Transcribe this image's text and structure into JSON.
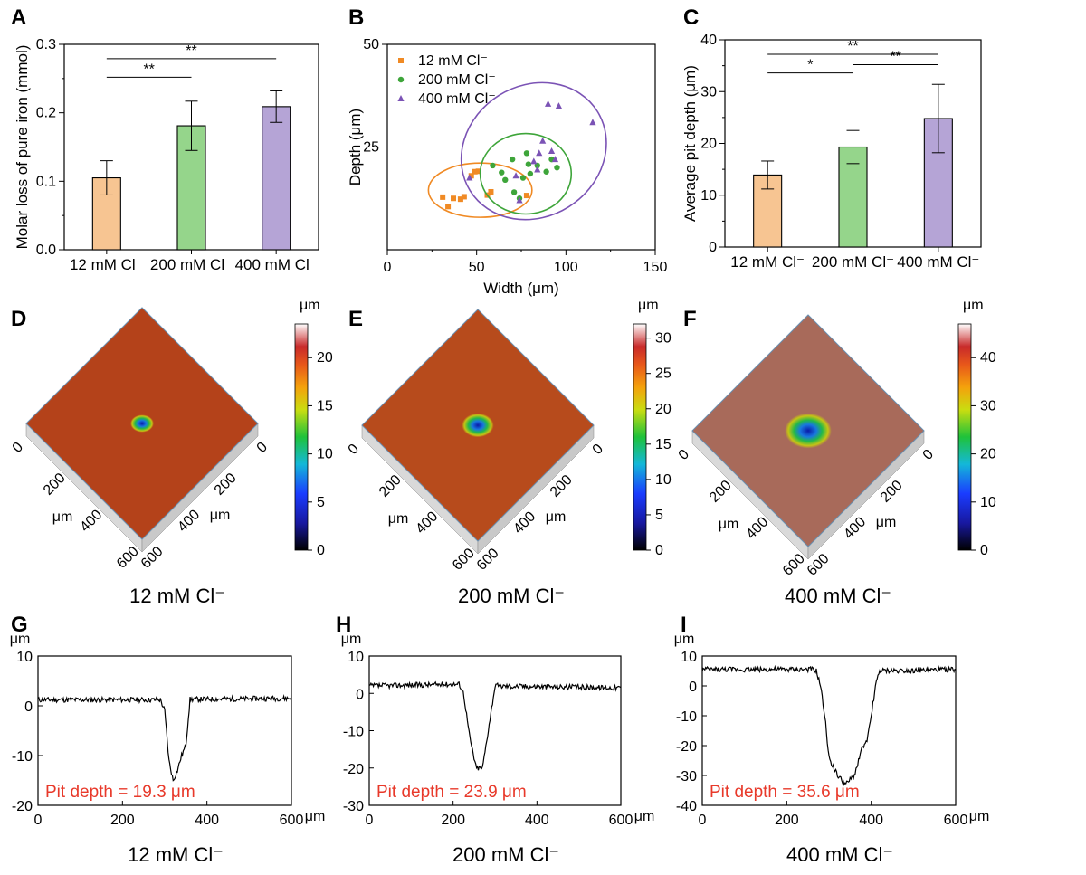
{
  "chart_data": [
    {
      "panel": "A",
      "type": "bar",
      "ylabel": "Molar loss of pure iron (mmol)",
      "ylim": [
        0,
        0.3
      ],
      "yticks": [
        "0.0",
        "0.1",
        "0.2",
        "0.3"
      ],
      "categories": [
        "12 mM Cl⁻",
        "200 mM Cl⁻",
        "400 mM Cl⁻"
      ],
      "values": [
        0.105,
        0.181,
        0.209
      ],
      "errors": [
        0.025,
        0.036,
        0.023
      ],
      "colors": [
        "#f7c592",
        "#95d58b",
        "#b5a4d6"
      ],
      "significance": [
        {
          "from": 0,
          "to": 1,
          "label": "**"
        },
        {
          "from": 0,
          "to": 2,
          "label": "**"
        }
      ]
    },
    {
      "panel": "B",
      "type": "scatter",
      "xlabel": "Width (μm)",
      "ylabel": "Depth (μm)",
      "xlim": [
        0,
        150
      ],
      "ylim": [
        0,
        50
      ],
      "xticks": [
        "0",
        "50",
        "100",
        "150"
      ],
      "yticks": [
        "25",
        "50"
      ],
      "legend_position": "top-left",
      "series": [
        {
          "name": "12 mM Cl⁻",
          "marker": "square",
          "color": "#f08a24",
          "points": [
            [
              31,
              12.8
            ],
            [
              34,
              10.5
            ],
            [
              37,
              12.5
            ],
            [
              41,
              12.3
            ],
            [
              43,
              12.9
            ],
            [
              47,
              18.0
            ],
            [
              49,
              19.0
            ],
            [
              51,
              19.1
            ],
            [
              56,
              13.3
            ],
            [
              58,
              14.1
            ],
            [
              78,
              13.2
            ]
          ],
          "ellipse": {
            "cx": 52,
            "cy": 14.5,
            "rx": 29,
            "ry": 6.6,
            "angle": 0
          }
        },
        {
          "name": "200 mM Cl⁻",
          "marker": "circle",
          "color": "#3ea53a",
          "points": [
            [
              59,
              20.5
            ],
            [
              64,
              18.8
            ],
            [
              66,
              17.0
            ],
            [
              70,
              22.0
            ],
            [
              71,
              14.0
            ],
            [
              74,
              12.5
            ],
            [
              76,
              17.5
            ],
            [
              78,
              23.5
            ],
            [
              79,
              20.8
            ],
            [
              80,
              18.5
            ],
            [
              84,
              20.5
            ],
            [
              89,
              19.0
            ],
            [
              92,
              22.0
            ],
            [
              95,
              20.0
            ]
          ],
          "ellipse": {
            "cx": 77.5,
            "cy": 18.5,
            "rx": 25.5,
            "ry": 9.8,
            "angle": 0
          }
        },
        {
          "name": "400 mM Cl⁻",
          "marker": "triangle",
          "color": "#7b53b5",
          "points": [
            [
              46,
              17.5
            ],
            [
              72,
              18.0
            ],
            [
              74,
              12.0
            ],
            [
              82,
              21.5
            ],
            [
              84,
              19.5
            ],
            [
              85,
              23.5
            ],
            [
              87,
              26.5
            ],
            [
              90,
              35.5
            ],
            [
              92,
              24.0
            ],
            [
              94,
              22.0
            ],
            [
              96,
              35.0
            ],
            [
              115,
              31.0
            ]
          ],
          "ellipse": {
            "cx": 82,
            "cy": 24,
            "rx": 42,
            "ry": 16,
            "angle": -32
          }
        }
      ]
    },
    {
      "panel": "C",
      "type": "bar",
      "ylabel": "Average pit depth (μm)",
      "ylim": [
        0,
        40
      ],
      "yticks": [
        "0",
        "10",
        "20",
        "30",
        "40"
      ],
      "categories": [
        "12 mM Cl⁻",
        "200 mM Cl⁻",
        "400 mM Cl⁻"
      ],
      "values": [
        13.9,
        19.3,
        24.8
      ],
      "errors": [
        2.7,
        3.2,
        6.6
      ],
      "colors": [
        "#f7c592",
        "#95d58b",
        "#b5a4d6"
      ],
      "significance": [
        {
          "from": 0,
          "to": 1,
          "label": "*"
        },
        {
          "from": 1,
          "to": 2,
          "label": "**"
        },
        {
          "from": 0,
          "to": 2,
          "label": "**"
        }
      ]
    },
    {
      "panel": "D",
      "type": "heatmap",
      "caption": "12 mM Cl⁻",
      "colorbar_unit": "μm",
      "colorbar_ticks": [
        "0",
        "5",
        "10",
        "15",
        "20"
      ],
      "colorbar_max": 23.5,
      "axis_ticks": [
        "0",
        "200",
        "400",
        "600"
      ],
      "axis_unit": "μm",
      "surface_tint": "#b4421a"
    },
    {
      "panel": "E",
      "type": "heatmap",
      "caption": "200 mM Cl⁻",
      "colorbar_unit": "μm",
      "colorbar_ticks": [
        "0",
        "5",
        "10",
        "15",
        "20",
        "25",
        "30"
      ],
      "colorbar_max": 32,
      "axis_ticks": [
        "0",
        "200",
        "400",
        "600"
      ],
      "axis_unit": "μm",
      "surface_tint": "#b74b1c"
    },
    {
      "panel": "F",
      "type": "heatmap",
      "caption": "400 mM Cl⁻",
      "colorbar_unit": "μm",
      "colorbar_ticks": [
        "0",
        "10",
        "20",
        "30",
        "40"
      ],
      "colorbar_max": 47,
      "axis_ticks": [
        "0",
        "200",
        "400",
        "600"
      ],
      "axis_unit": "μm",
      "surface_tint": "#a86a5a"
    },
    {
      "panel": "G",
      "type": "line",
      "caption": "12 mM Cl⁻",
      "xunit": "μm",
      "yunit": "μm",
      "xlim": [
        0,
        600
      ],
      "ylim": [
        -20,
        10
      ],
      "xticks": [
        "0",
        "200",
        "400",
        "600"
      ],
      "yticks": [
        "-20",
        "-10",
        "0",
        "10"
      ],
      "annotation": "Pit depth = 19.3 μm",
      "x": [
        0,
        290,
        300,
        310,
        320,
        330,
        340,
        350,
        360,
        600
      ],
      "y": [
        1.2,
        1.2,
        -1,
        -11,
        -15,
        -13,
        -10,
        -8,
        1.3,
        1.5
      ]
    },
    {
      "panel": "H",
      "type": "line",
      "caption": "200 mM Cl⁻",
      "xunit": "μm",
      "yunit": "μm",
      "xlim": [
        0,
        600
      ],
      "ylim": [
        -30,
        10
      ],
      "xticks": [
        "0",
        "200",
        "400",
        "600"
      ],
      "yticks": [
        "-30",
        "-20",
        "-10",
        "0",
        "10"
      ],
      "annotation": "Pit depth = 23.9 μm",
      "x": [
        0,
        215,
        225,
        240,
        255,
        270,
        285,
        300,
        600
      ],
      "y": [
        2,
        2.5,
        0,
        -12,
        -20,
        -20,
        -9,
        2,
        1.5
      ]
    },
    {
      "panel": "I",
      "type": "line",
      "caption": "400 mM Cl⁻",
      "xunit": "μm",
      "yunit": "μm",
      "xlim": [
        0,
        600
      ],
      "ylim": [
        -40,
        10
      ],
      "xticks": [
        "0",
        "200",
        "400",
        "600"
      ],
      "yticks": [
        "-40",
        "-30",
        "-20",
        "-10",
        "0",
        "10"
      ],
      "annotation": "Pit depth = 35.6 μm",
      "x": [
        0,
        260,
        270,
        280,
        290,
        300,
        320,
        340,
        360,
        380,
        390,
        400,
        410,
        420,
        600
      ],
      "y": [
        5.5,
        5.5,
        5,
        0,
        -10,
        -24,
        -30,
        -33,
        -30,
        -20,
        -19,
        -10,
        0,
        5,
        5.5
      ]
    }
  ]
}
